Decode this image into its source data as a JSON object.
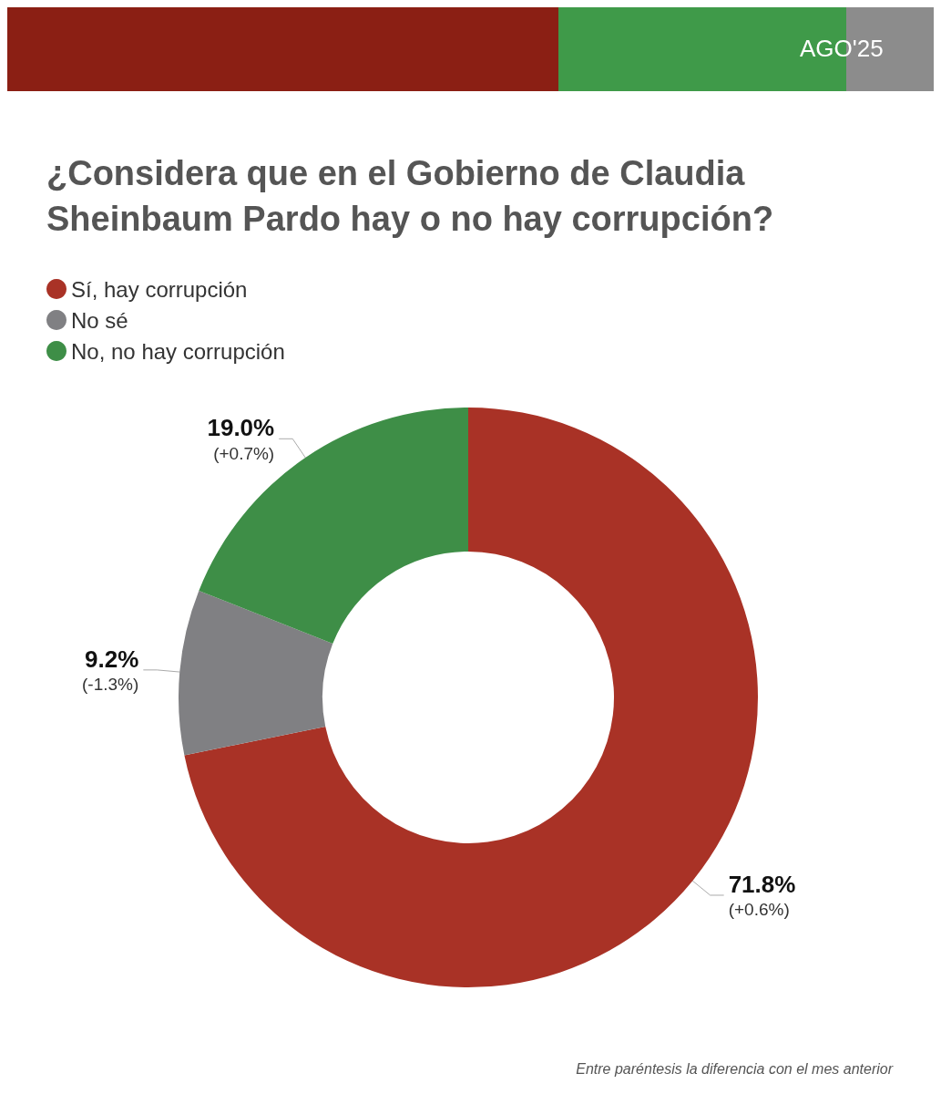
{
  "chart_data": {
    "type": "donut",
    "title": "¿Considera que en el Gobierno de Claudia Sheinbaum Pardo hay o no hay corrupción?",
    "subtitle": "AGO'25",
    "categories": [
      "Sí, hay corrupción",
      "No sé",
      "No, no hay corrupción"
    ],
    "values": [
      71.8,
      9.2,
      19.0
    ],
    "colors": [
      "#a93226",
      "#808083",
      "#3e8e47"
    ],
    "value_labels": [
      "71.8%\n(+0.6%)",
      "9.2%\n(-1.3%)",
      "19.0%\n(+0.7%)"
    ],
    "legend": "top left",
    "annotations": [
      "Entre paréntesis la diferencia con el mes anterior"
    ]
  }
}
